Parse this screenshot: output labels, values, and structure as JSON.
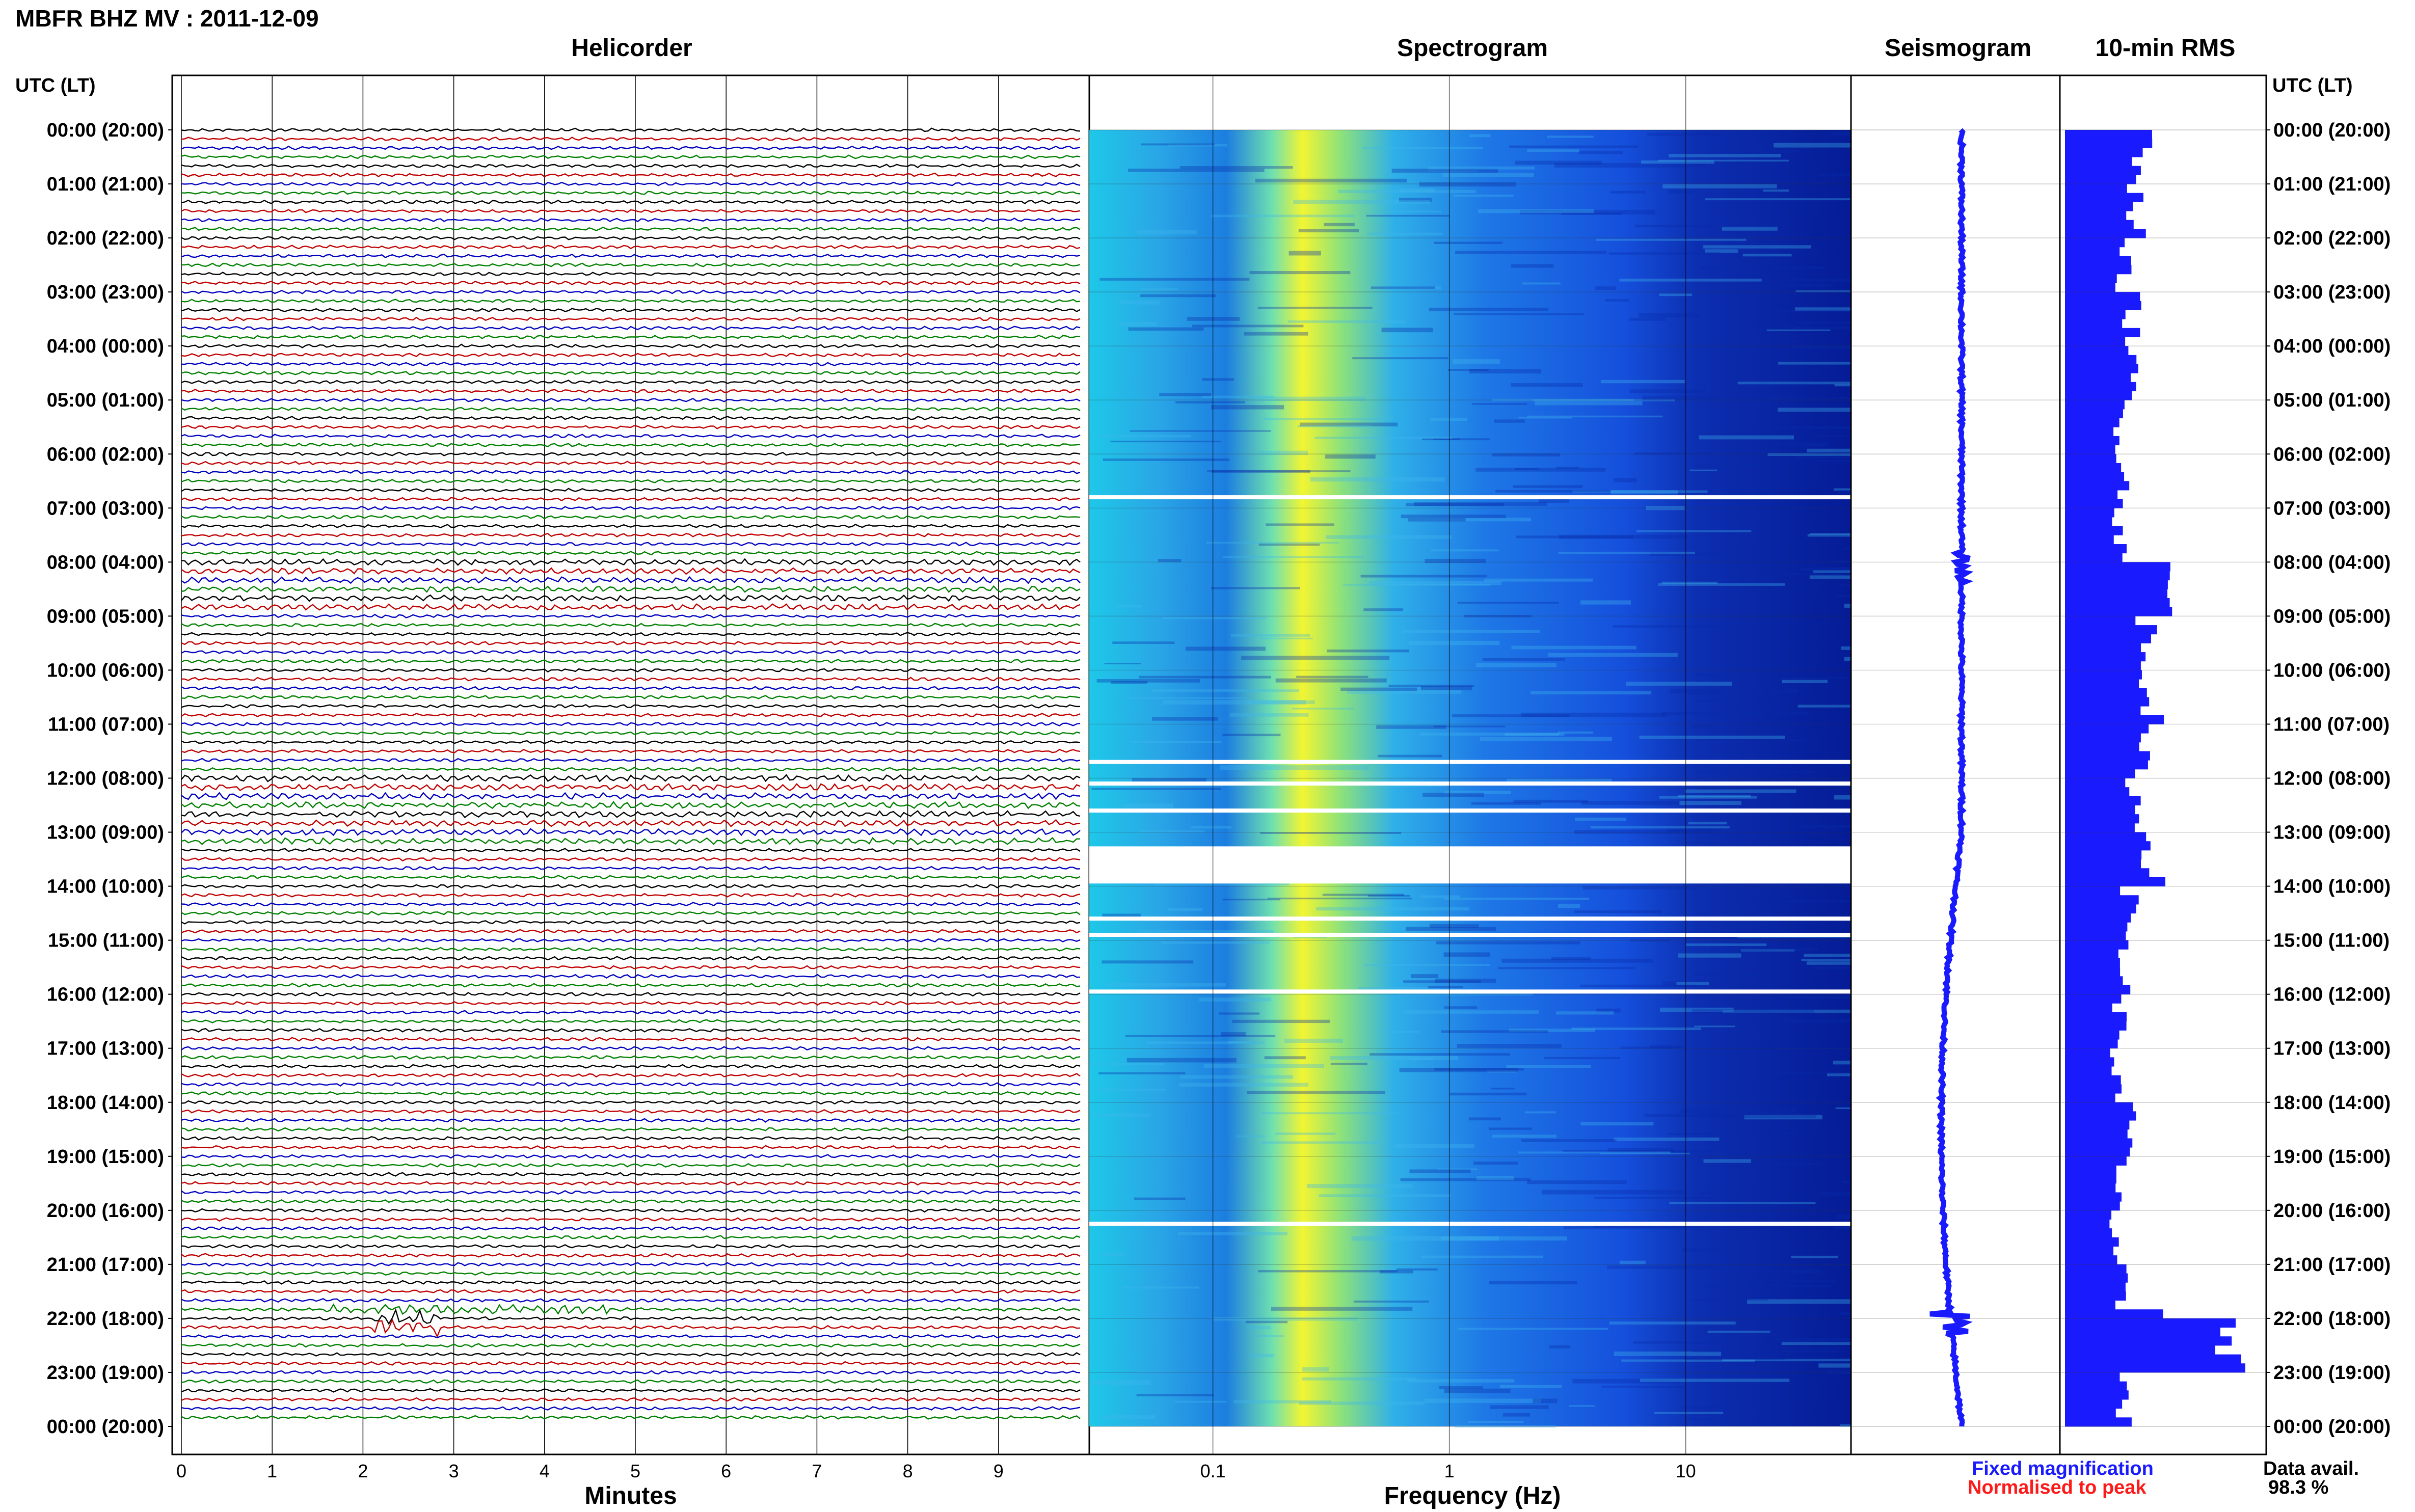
{
  "header": {
    "title": "MBFR BHZ MV : 2011-12-09"
  },
  "panels": {
    "helicorder": "Helicorder",
    "spectrogram": "Spectrogram",
    "seismogram": "Seismogram",
    "rms": "10-min RMS"
  },
  "time_axis": {
    "label_left": "UTC (LT)",
    "label_right": "UTC (LT)",
    "hours": [
      "00:00 (20:00)",
      "01:00 (21:00)",
      "02:00 (22:00)",
      "03:00 (23:00)",
      "04:00 (00:00)",
      "05:00 (01:00)",
      "06:00 (02:00)",
      "07:00 (03:00)",
      "08:00 (04:00)",
      "09:00 (05:00)",
      "10:00 (06:00)",
      "11:00 (07:00)",
      "12:00 (08:00)",
      "13:00 (09:00)",
      "14:00 (10:00)",
      "15:00 (11:00)",
      "16:00 (12:00)",
      "17:00 (13:00)",
      "18:00 (14:00)",
      "19:00 (15:00)",
      "20:00 (16:00)",
      "21:00 (17:00)",
      "22:00 (18:00)",
      "23:00 (19:00)",
      "00:00 (20:00)"
    ]
  },
  "legend": {
    "fixed": "Fixed magnification",
    "normalised": "Normalised to peak",
    "fixed_color": "#1a1aff",
    "normalised_color": "#ff1a1a",
    "availability_label": "Data avail.",
    "availability_value": "98.3 %"
  },
  "chart_data": [
    {
      "type": "line",
      "panel": "helicorder",
      "xlabel": "Minutes",
      "x_ticks": [
        "0",
        "1",
        "2",
        "3",
        "4",
        "5",
        "6",
        "7",
        "8",
        "9"
      ],
      "xlim": [
        0,
        10
      ],
      "ylim": [
        0,
        24
      ],
      "row_interval_minutes": 10,
      "trace_colors": [
        "#000000",
        "#c00000",
        "#0000c0",
        "#008000"
      ]
    },
    {
      "type": "heatmap",
      "panel": "spectrogram",
      "xlabel": "Frequency (Hz)",
      "x_scale": "log",
      "x_ticks": [
        "0.1",
        "1",
        "10"
      ],
      "xlim": [
        0.03,
        50
      ],
      "ylim": [
        0,
        24
      ],
      "gaps_utc_hours": [
        6.8,
        11.7,
        12.1,
        12.6,
        13.3,
        13.45,
        13.6,
        13.75,
        14.6,
        14.9,
        15.95,
        20.25
      ]
    },
    {
      "type": "line",
      "panel": "seismogram",
      "ylim": [
        0,
        24
      ]
    },
    {
      "type": "bar",
      "panel": "rms",
      "orientation": "horizontal",
      "bin_minutes": 10,
      "ylim": [
        0,
        24
      ],
      "bar_color": "#1a1aff",
      "hourly_profile": [
        0.4,
        0.36,
        0.3,
        0.34,
        0.33,
        0.29,
        0.3,
        0.28,
        0.52,
        0.42,
        0.44,
        0.38,
        0.36,
        0.45,
        0.33,
        0.3,
        0.28,
        0.26,
        0.32,
        0.28,
        0.24,
        0.28,
        0.85,
        0.3
      ]
    }
  ]
}
